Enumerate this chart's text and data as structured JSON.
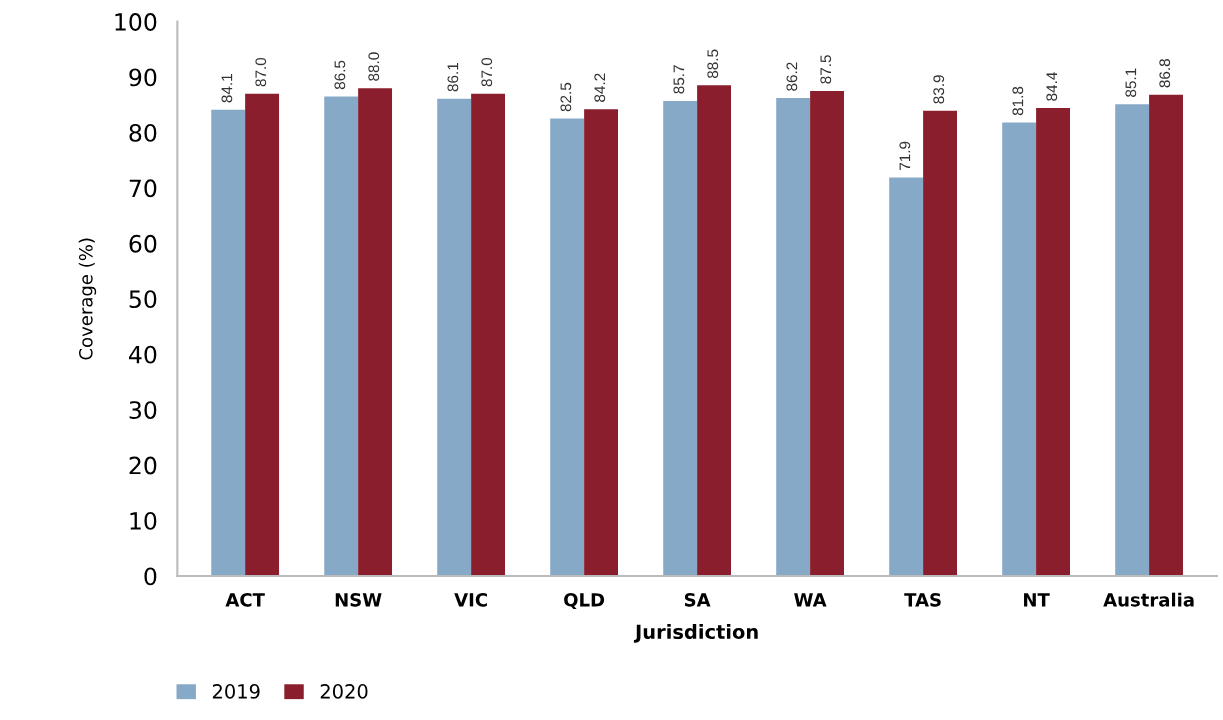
{
  "chart_data": {
    "type": "bar",
    "xlabel": "Jurisdiction",
    "ylabel": "Coverage (%)",
    "categories": [
      "ACT",
      "NSW",
      "VIC",
      "QLD",
      "SA",
      "WA",
      "TAS",
      "NT",
      "Australia"
    ],
    "series": [
      {
        "name": "2019",
        "color": "#87a9c8",
        "values": [
          84.1,
          86.5,
          86.1,
          82.5,
          85.7,
          86.2,
          71.9,
          81.8,
          85.1
        ],
        "value_labels": [
          "84.1",
          "86.5",
          "86.1",
          "82.5",
          "85.7",
          "86.2",
          "71.9",
          "81.8",
          "85.1"
        ]
      },
      {
        "name": "2020",
        "color": "#8b1e2d",
        "values": [
          87.0,
          88.0,
          87.0,
          84.2,
          88.5,
          87.5,
          83.9,
          84.4,
          86.8
        ],
        "value_labels": [
          "87.0",
          "88.0",
          "87.0",
          "84.2",
          "88.5",
          "87.5",
          "83.9",
          "84.4",
          "86.8"
        ]
      }
    ],
    "ylim": [
      0,
      100
    ],
    "yticks": [
      0,
      10,
      20,
      30,
      40,
      50,
      60,
      70,
      80,
      90,
      100
    ],
    "grid": false,
    "legend": "bottom left"
  }
}
